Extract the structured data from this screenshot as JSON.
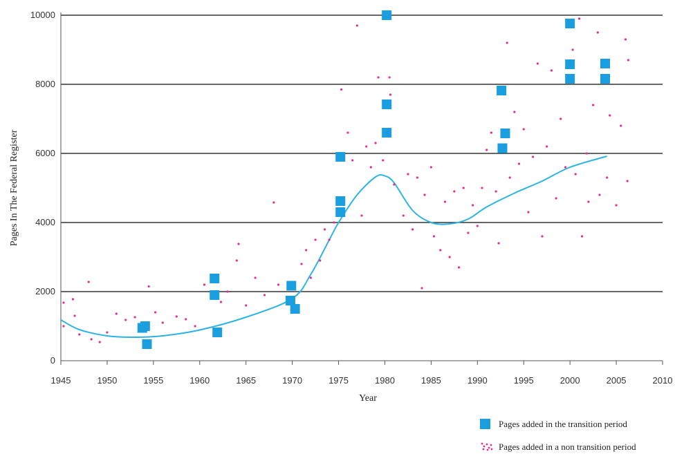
{
  "chart_data": {
    "type": "scatter",
    "xlabel": "Year",
    "ylabel": "Pages In The Federal Register",
    "xlim": [
      1945,
      2010
    ],
    "ylim": [
      0,
      10000
    ],
    "x_ticks": [
      1945,
      1950,
      1955,
      1960,
      1965,
      1970,
      1975,
      1980,
      1985,
      1990,
      1995,
      2000,
      2005,
      2010
    ],
    "y_ticks": [
      0,
      2000,
      4000,
      6000,
      8000,
      10000
    ],
    "grid": "horizontal",
    "legend_position": "bottom-right",
    "colors": {
      "transition": "#1a9ee0",
      "non_transition": "#e0308f",
      "trend": "#2bb3e6",
      "grid": "#333333"
    },
    "series": [
      {
        "name": "Pages added in the transition period",
        "marker": "square",
        "points": [
          [
            1953.8,
            950
          ],
          [
            1954.1,
            1000
          ],
          [
            1954.3,
            480
          ],
          [
            1961.6,
            2380
          ],
          [
            1961.6,
            1900
          ],
          [
            1961.9,
            820
          ],
          [
            1969.8,
            1740
          ],
          [
            1969.9,
            2170
          ],
          [
            1970.3,
            1500
          ],
          [
            1975.2,
            5900
          ],
          [
            1975.2,
            4620
          ],
          [
            1975.2,
            4300
          ],
          [
            1980.2,
            10000
          ],
          [
            1980.2,
            7420
          ],
          [
            1980.2,
            6600
          ],
          [
            1992.6,
            7820
          ],
          [
            1992.7,
            6150
          ],
          [
            1993.0,
            6580
          ],
          [
            2000.0,
            9760
          ],
          [
            2000.0,
            8580
          ],
          [
            2000.0,
            8160
          ],
          [
            2003.8,
            8600
          ],
          [
            2003.8,
            8160
          ]
        ]
      },
      {
        "name": "Pages added in a non transition period",
        "marker": "dots",
        "points": [
          [
            1945.3,
            1680
          ],
          [
            1945.3,
            1000
          ],
          [
            1946.3,
            1780
          ],
          [
            1946.5,
            1300
          ],
          [
            1947.0,
            760
          ],
          [
            1948.0,
            2280
          ],
          [
            1948.3,
            620
          ],
          [
            1949.2,
            540
          ],
          [
            1950.0,
            820
          ],
          [
            1951.0,
            1360
          ],
          [
            1952.0,
            1180
          ],
          [
            1953.0,
            1260
          ],
          [
            1954.5,
            2150
          ],
          [
            1955.2,
            1400
          ],
          [
            1956.0,
            1100
          ],
          [
            1957.5,
            1280
          ],
          [
            1958.5,
            1200
          ],
          [
            1959.5,
            1000
          ],
          [
            1960.5,
            2200
          ],
          [
            1962.3,
            1700
          ],
          [
            1963.0,
            2000
          ],
          [
            1964.0,
            2900
          ],
          [
            1964.2,
            3380
          ],
          [
            1965.0,
            1600
          ],
          [
            1966.0,
            2400
          ],
          [
            1967.0,
            1900
          ],
          [
            1968.0,
            4580
          ],
          [
            1968.5,
            2200
          ],
          [
            1971.0,
            2800
          ],
          [
            1971.5,
            3200
          ],
          [
            1972.0,
            2400
          ],
          [
            1972.5,
            3500
          ],
          [
            1973.0,
            2900
          ],
          [
            1973.5,
            3800
          ],
          [
            1974.0,
            3500
          ],
          [
            1974.5,
            4000
          ],
          [
            1975.3,
            7850
          ],
          [
            1976.0,
            6600
          ],
          [
            1976.5,
            5800
          ],
          [
            1977.0,
            9700
          ],
          [
            1977.5,
            4200
          ],
          [
            1978.0,
            6200
          ],
          [
            1978.5,
            5600
          ],
          [
            1979.0,
            6300
          ],
          [
            1979.3,
            8200
          ],
          [
            1979.8,
            5800
          ],
          [
            1980.5,
            8200
          ],
          [
            1980.6,
            7700
          ],
          [
            1981.0,
            5100
          ],
          [
            1982.0,
            4200
          ],
          [
            1982.5,
            5400
          ],
          [
            1983.0,
            3800
          ],
          [
            1983.5,
            5300
          ],
          [
            1984.0,
            2100
          ],
          [
            1984.3,
            4800
          ],
          [
            1985.0,
            5600
          ],
          [
            1985.3,
            3600
          ],
          [
            1986.0,
            3200
          ],
          [
            1986.5,
            4600
          ],
          [
            1987.0,
            3000
          ],
          [
            1987.5,
            4900
          ],
          [
            1988.0,
            2700
          ],
          [
            1988.5,
            5000
          ],
          [
            1989.0,
            3700
          ],
          [
            1989.5,
            4500
          ],
          [
            1990.0,
            3900
          ],
          [
            1990.5,
            5000
          ],
          [
            1991.0,
            6100
          ],
          [
            1991.5,
            6600
          ],
          [
            1992.0,
            4900
          ],
          [
            1992.3,
            3400
          ],
          [
            1993.2,
            9200
          ],
          [
            1993.5,
            5300
          ],
          [
            1994.0,
            7200
          ],
          [
            1994.5,
            5700
          ],
          [
            1995.0,
            6700
          ],
          [
            1995.5,
            4300
          ],
          [
            1996.0,
            5900
          ],
          [
            1996.5,
            8600
          ],
          [
            1997.0,
            3600
          ],
          [
            1997.5,
            6200
          ],
          [
            1998.0,
            8400
          ],
          [
            1998.5,
            4700
          ],
          [
            1999.0,
            7000
          ],
          [
            1999.5,
            5600
          ],
          [
            2000.3,
            9000
          ],
          [
            2000.6,
            5400
          ],
          [
            2001.0,
            9900
          ],
          [
            2001.3,
            3600
          ],
          [
            2001.8,
            6000
          ],
          [
            2002.0,
            4600
          ],
          [
            2002.5,
            7400
          ],
          [
            2003.0,
            9500
          ],
          [
            2003.2,
            4800
          ],
          [
            2004.0,
            5300
          ],
          [
            2004.3,
            7100
          ],
          [
            2005.0,
            4500
          ],
          [
            2005.5,
            6800
          ],
          [
            2006.0,
            9300
          ],
          [
            2006.2,
            5200
          ],
          [
            2006.3,
            8700
          ]
        ]
      }
    ],
    "trend_line": {
      "x": [
        1945,
        1947,
        1950,
        1953,
        1956,
        1960,
        1965,
        1970,
        1972,
        1974,
        1975,
        1977,
        1979,
        1980,
        1981,
        1983,
        1985,
        1987,
        1989,
        1991,
        1994,
        1997,
        2000,
        2004
      ],
      "y": [
        1180,
        900,
        720,
        680,
        720,
        890,
        1260,
        1800,
        2500,
        3500,
        4000,
        4800,
        5320,
        5350,
        5150,
        4350,
        4000,
        3960,
        4100,
        4450,
        4850,
        5200,
        5600,
        5920
      ]
    }
  }
}
